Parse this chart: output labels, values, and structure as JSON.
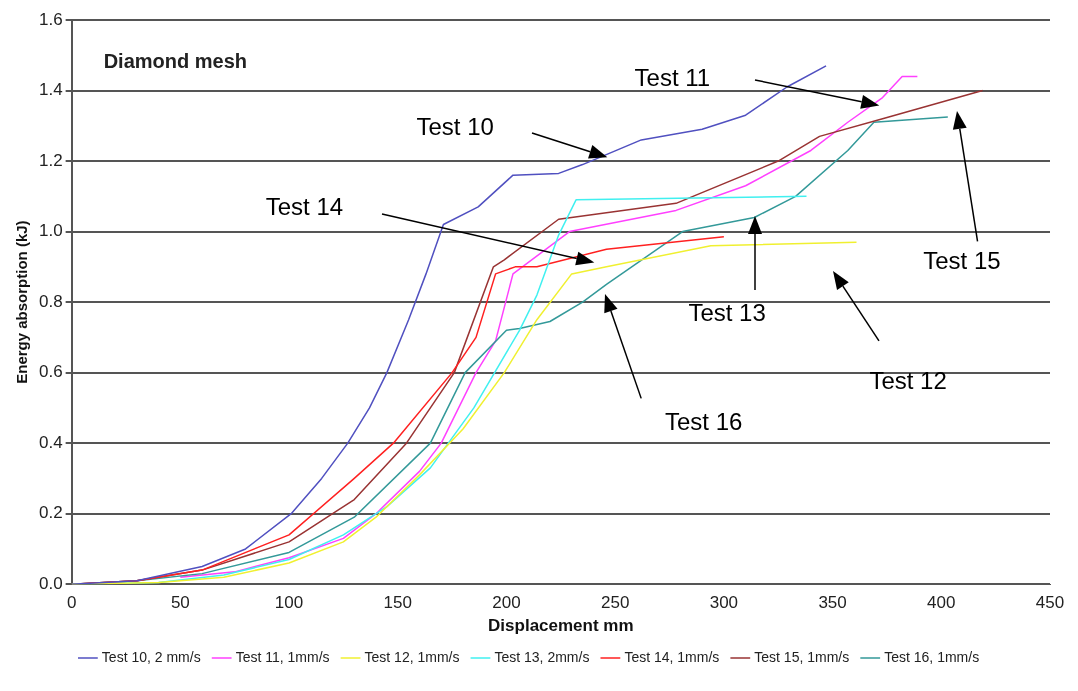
{
  "chart_data": {
    "type": "line",
    "title": "Diamond mesh",
    "xlabel": "Displacement mm",
    "ylabel": "Energy absorption (kJ)",
    "xlim": [
      0,
      450
    ],
    "xticks": [
      0,
      50,
      100,
      150,
      200,
      250,
      300,
      350,
      400,
      450
    ],
    "ylim": [
      0,
      1.6
    ],
    "yticks": [
      {
        "value": 0,
        "label": "0.0"
      },
      {
        "value": 0.2,
        "label": "0.2"
      },
      {
        "value": 0.4,
        "label": "0.4"
      },
      {
        "value": 0.6,
        "label": "0.6"
      },
      {
        "value": 0.8,
        "label": "0.8"
      },
      {
        "value": 1,
        "label": "1.0"
      },
      {
        "value": 1.2,
        "label": "1.2"
      },
      {
        "value": 1.4,
        "label": "1.4"
      },
      {
        "value": 1.6,
        "label": "1.6"
      }
    ],
    "grid": "y",
    "legend": "bottom",
    "marker": "none",
    "line_style": "solid",
    "series": [
      {
        "name": "Test 10, 2 mm/s",
        "color": "#5050c0",
        "x": [
          0,
          30,
          60,
          80,
          101,
          115,
          127,
          137,
          145,
          155,
          163,
          171,
          187,
          203,
          224,
          235,
          262,
          290,
          310,
          329,
          347
        ],
        "values": [
          0,
          0.01,
          0.05,
          0.1,
          0.2,
          0.3,
          0.4,
          0.5,
          0.6,
          0.75,
          0.88,
          1.02,
          1.07,
          1.16,
          1.165,
          1.19,
          1.26,
          1.29,
          1.33,
          1.41,
          1.47
        ]
      },
      {
        "name": "Test 11, 1mm/s",
        "color": "#ff40ff",
        "x": [
          50,
          75,
          100,
          125,
          140,
          160,
          170,
          186,
          195,
          203,
          229,
          278,
          310,
          340,
          357,
          373,
          382,
          389
        ],
        "values": [
          0.02,
          0.035,
          0.075,
          0.13,
          0.2,
          0.32,
          0.4,
          0.6,
          0.69,
          0.88,
          1.0,
          1.06,
          1.13,
          1.23,
          1.31,
          1.38,
          1.44,
          1.44
        ]
      },
      {
        "name": "Test 12, 1mm/s",
        "color": "#f0f030",
        "x": [
          0,
          40,
          70,
          100,
          125,
          140,
          160,
          180,
          199,
          214,
          230,
          246,
          294,
          361
        ],
        "values": [
          0,
          0.005,
          0.02,
          0.06,
          0.12,
          0.19,
          0.31,
          0.44,
          0.6,
          0.75,
          0.88,
          0.9,
          0.96,
          0.97
        ]
      },
      {
        "name": "Test 13, 2mm/s",
        "color": "#40f0f0",
        "x": [
          0,
          40,
          70,
          100,
          125,
          145,
          165,
          185,
          206,
          214,
          224,
          232,
          338
        ],
        "values": [
          0,
          0.005,
          0.026,
          0.07,
          0.14,
          0.22,
          0.33,
          0.5,
          0.72,
          0.82,
          0.99,
          1.09,
          1.1
        ]
      },
      {
        "name": "Test 14, 1mm/s",
        "color": "#ff2020",
        "x": [
          0,
          30,
          60,
          100,
          130,
          148,
          175,
          186,
          195,
          204,
          214,
          246,
          300
        ],
        "values": [
          0,
          0.01,
          0.04,
          0.14,
          0.3,
          0.4,
          0.6,
          0.7,
          0.88,
          0.9,
          0.9,
          0.95,
          0.985
        ]
      },
      {
        "name": "Test 15, 1mm/s",
        "color": "#993333",
        "x": [
          0,
          30,
          60,
          100,
          130,
          154,
          176,
          194,
          199,
          224,
          278,
          325,
          344,
          373,
          419
        ],
        "values": [
          0,
          0.01,
          0.04,
          0.12,
          0.24,
          0.4,
          0.6,
          0.9,
          0.92,
          1.035,
          1.08,
          1.2,
          1.27,
          1.32,
          1.4
        ]
      },
      {
        "name": "Test 16, 1mm/s",
        "color": "#339999",
        "x": [
          0,
          30,
          60,
          100,
          130,
          165,
          181,
          200,
          206,
          220,
          235,
          246,
          281,
          314,
          333,
          357,
          369,
          403
        ],
        "values": [
          0,
          0.01,
          0.03,
          0.09,
          0.19,
          0.4,
          0.6,
          0.72,
          0.725,
          0.745,
          0.8,
          0.85,
          1.0,
          1.04,
          1.1,
          1.23,
          1.31,
          1.325
        ]
      }
    ],
    "annotations": [
      "Test 10",
      "Test 11",
      "Test 14",
      "Test 13",
      "Test 15",
      "Test 12",
      "Test 16"
    ]
  }
}
